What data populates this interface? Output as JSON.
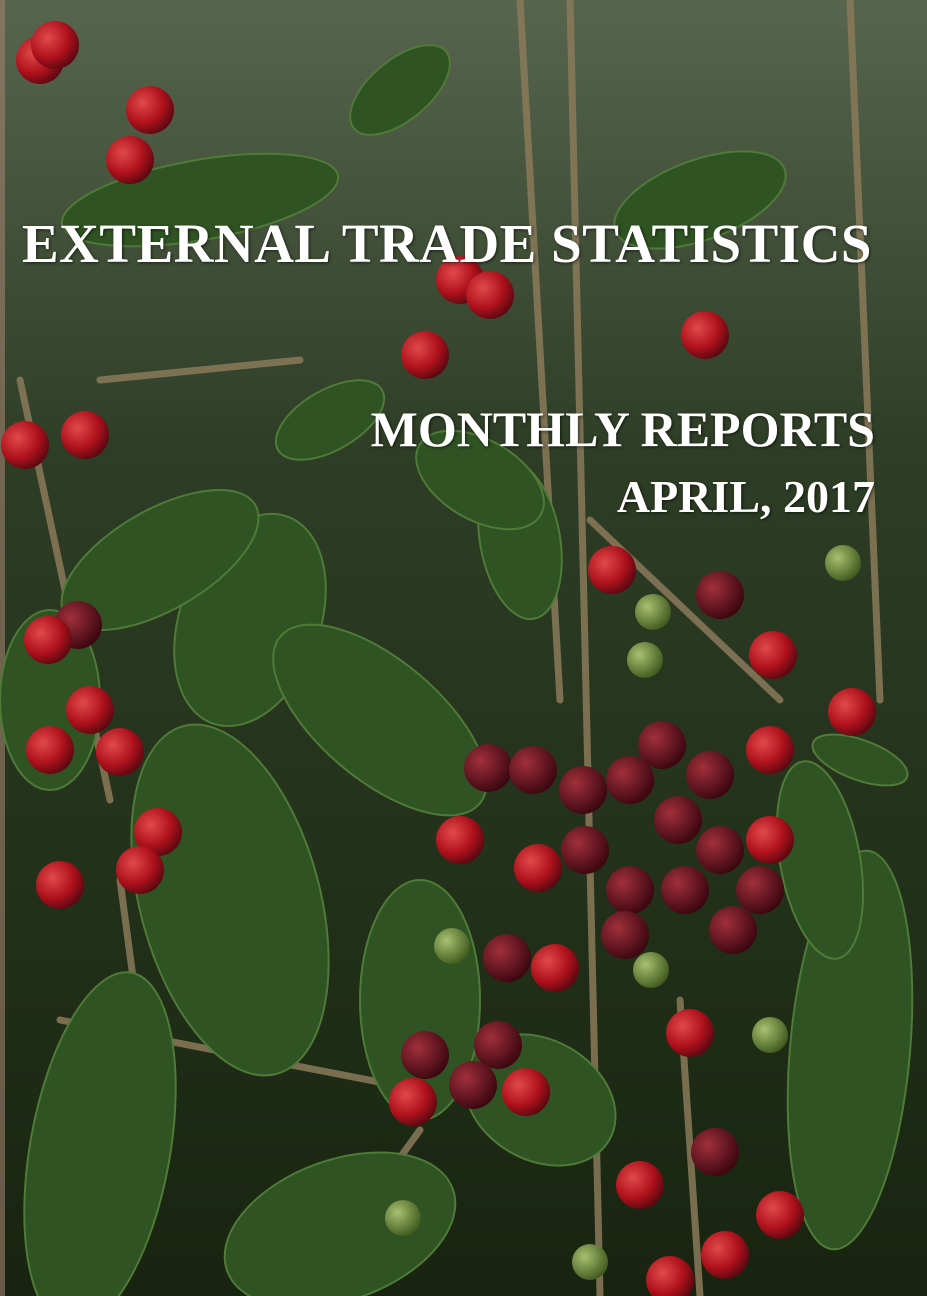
{
  "cover": {
    "title": "EXTERNAL TRADE STATISTICS",
    "subtitle": "MONTHLY REPORTS",
    "date": "APRIL, 2017"
  }
}
